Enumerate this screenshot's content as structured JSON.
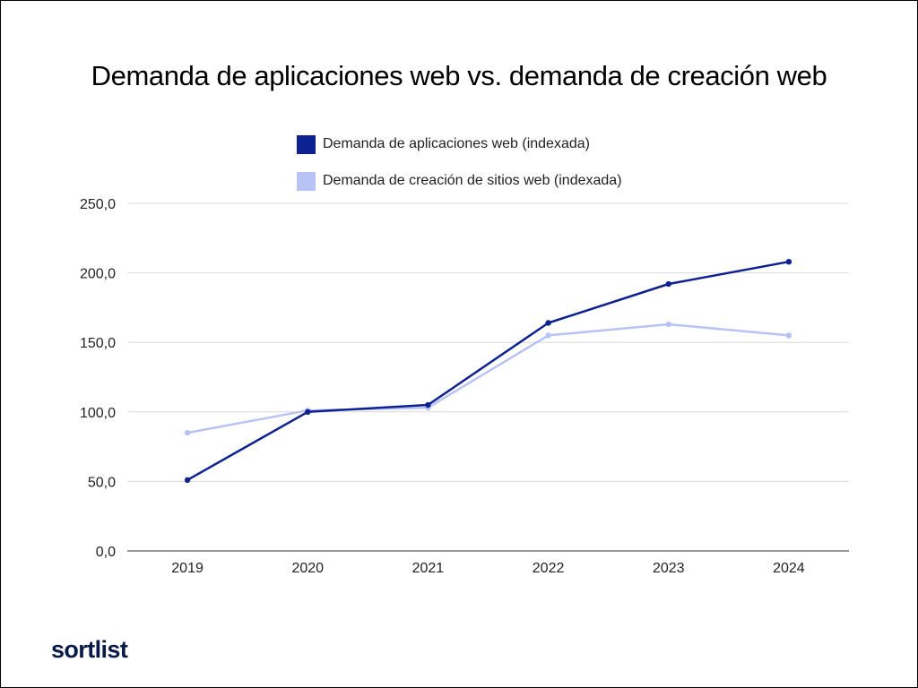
{
  "chart_data": {
    "type": "line",
    "title": "Demanda de aplicaciones web vs. demanda de creación web",
    "xlabel": "",
    "ylabel": "",
    "categories": [
      "2019",
      "2020",
      "2021",
      "2022",
      "2023",
      "2024"
    ],
    "y_ticks": [
      "0,0",
      "50,0",
      "100,0",
      "150,0",
      "200,0",
      "250,0"
    ],
    "ylim": [
      0,
      250
    ],
    "grid": true,
    "legend_position": "top-center",
    "series": [
      {
        "name": "Demanda de aplicaciones web (indexada)",
        "color": "#0d2190",
        "values": [
          51,
          100,
          105,
          164,
          192,
          208
        ]
      },
      {
        "name": "Demanda de creación de sitios web (indexada)",
        "color": "#b9c2f5",
        "values": [
          85,
          101,
          103,
          155,
          163,
          155
        ]
      }
    ]
  },
  "brand": {
    "name": "sortlist",
    "color": "#0a1a4a"
  }
}
